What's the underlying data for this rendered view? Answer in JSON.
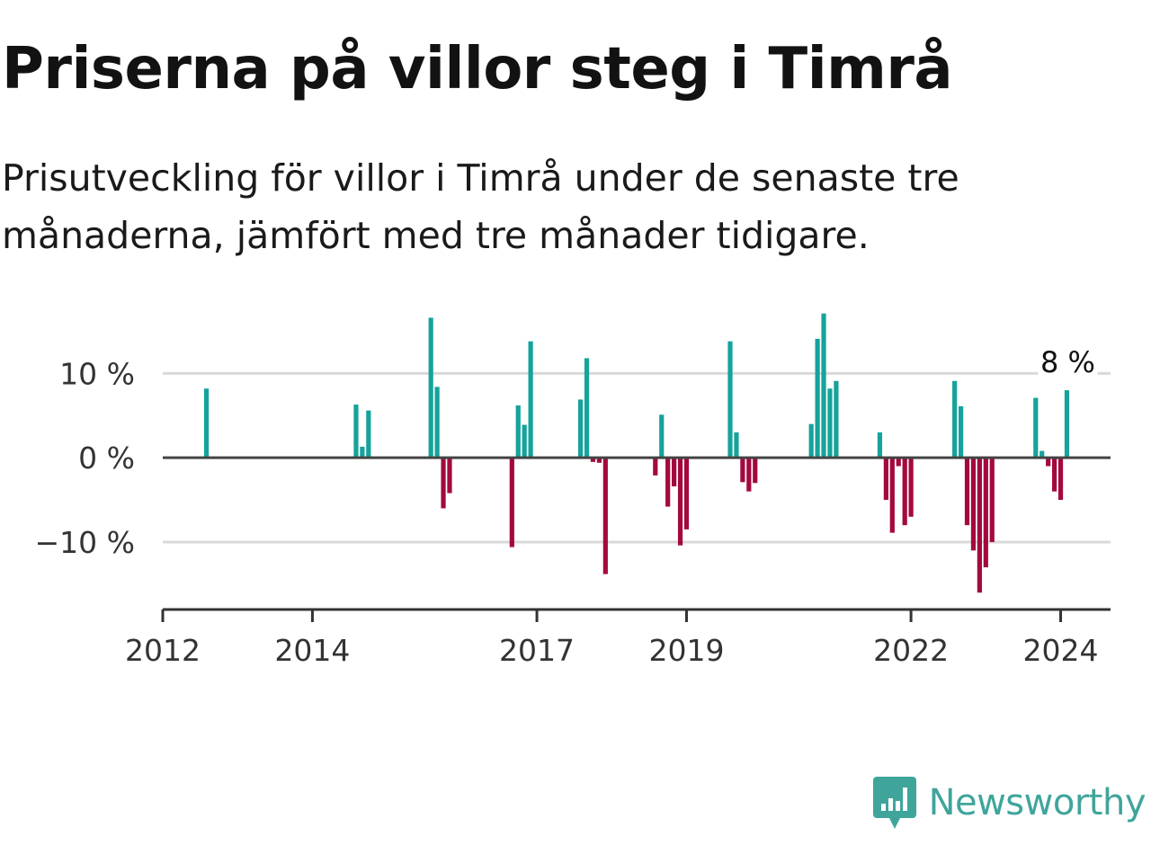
{
  "title": "Priserna på villor steg i Timrå",
  "subtitle": "Prisutveckling för villor i Timrå under de senaste tre månaderna, jämfört med tre månader tidigare.",
  "brand": {
    "name": "Newsworthy",
    "icon": "bar-chart-speech-bubble-icon",
    "color": "#3fa59b"
  },
  "colors": {
    "positive": "#15a39b",
    "negative": "#a3093f",
    "zero_line": "#444444",
    "grid": "#d9d9d9",
    "axis": "#333333"
  },
  "chart_data": {
    "type": "bar",
    "title": "Priserna på villor steg i Timrå",
    "subtitle": "Prisutveckling för villor i Timrå under de senaste tre månaderna, jämfört med tre månader tidigare.",
    "xlabel": "",
    "ylabel": "",
    "unit": "%",
    "xlim": [
      "2012-01",
      "2024-09"
    ],
    "ylim": [
      -18,
      17.5
    ],
    "grid": true,
    "y_ticks": [
      {
        "value": 10,
        "label": "10 %"
      },
      {
        "value": 0,
        "label": "0 %"
      },
      {
        "value": -10,
        "label": "−10 %"
      }
    ],
    "x_ticks": [
      {
        "value": "2012-01",
        "label": "2012"
      },
      {
        "value": "2014-01",
        "label": "2014"
      },
      {
        "value": "2017-01",
        "label": "2017"
      },
      {
        "value": "2019-01",
        "label": "2019"
      },
      {
        "value": "2022-01",
        "label": "2022"
      },
      {
        "value": "2024-01",
        "label": "2024"
      }
    ],
    "annotation": {
      "x": "2024-02",
      "label": "8 %"
    },
    "points": [
      {
        "x": "2012-08",
        "y": 8.2
      },
      {
        "x": "2014-08",
        "y": 6.3
      },
      {
        "x": "2014-09",
        "y": 1.3
      },
      {
        "x": "2014-10",
        "y": 5.6
      },
      {
        "x": "2015-08",
        "y": 16.6
      },
      {
        "x": "2015-09",
        "y": 8.4
      },
      {
        "x": "2015-10",
        "y": -6.0
      },
      {
        "x": "2015-11",
        "y": -4.2
      },
      {
        "x": "2016-09",
        "y": -10.6
      },
      {
        "x": "2016-10",
        "y": 6.2
      },
      {
        "x": "2016-11",
        "y": 3.9
      },
      {
        "x": "2016-12",
        "y": 13.8
      },
      {
        "x": "2017-08",
        "y": 6.9
      },
      {
        "x": "2017-09",
        "y": 11.8
      },
      {
        "x": "2017-10",
        "y": -0.5
      },
      {
        "x": "2017-11",
        "y": -0.6
      },
      {
        "x": "2017-12",
        "y": -13.8
      },
      {
        "x": "2018-08",
        "y": -2.1
      },
      {
        "x": "2018-09",
        "y": 5.1
      },
      {
        "x": "2018-10",
        "y": -5.8
      },
      {
        "x": "2018-11",
        "y": -3.4
      },
      {
        "x": "2018-12",
        "y": -10.4
      },
      {
        "x": "2019-01",
        "y": -8.5
      },
      {
        "x": "2019-08",
        "y": 13.8
      },
      {
        "x": "2019-09",
        "y": 3.0
      },
      {
        "x": "2019-10",
        "y": -2.9
      },
      {
        "x": "2019-11",
        "y": -4.0
      },
      {
        "x": "2019-12",
        "y": -3.0
      },
      {
        "x": "2020-09",
        "y": 4.0
      },
      {
        "x": "2020-10",
        "y": 14.1
      },
      {
        "x": "2020-11",
        "y": 17.1
      },
      {
        "x": "2020-12",
        "y": 8.2
      },
      {
        "x": "2021-01",
        "y": 9.1
      },
      {
        "x": "2021-08",
        "y": 3.0
      },
      {
        "x": "2021-09",
        "y": -5.0
      },
      {
        "x": "2021-10",
        "y": -8.9
      },
      {
        "x": "2021-11",
        "y": -1.0
      },
      {
        "x": "2021-12",
        "y": -8.0
      },
      {
        "x": "2022-01",
        "y": -7.0
      },
      {
        "x": "2022-08",
        "y": 9.1
      },
      {
        "x": "2022-09",
        "y": 6.1
      },
      {
        "x": "2022-10",
        "y": -8.0
      },
      {
        "x": "2022-11",
        "y": -11.0
      },
      {
        "x": "2022-12",
        "y": -16.0
      },
      {
        "x": "2023-01",
        "y": -13.0
      },
      {
        "x": "2023-02",
        "y": -10.0
      },
      {
        "x": "2023-09",
        "y": 7.1
      },
      {
        "x": "2023-10",
        "y": 0.8
      },
      {
        "x": "2023-11",
        "y": -1.0
      },
      {
        "x": "2023-12",
        "y": -4.0
      },
      {
        "x": "2024-01",
        "y": -5.0
      },
      {
        "x": "2024-02",
        "y": 8.0
      }
    ]
  }
}
